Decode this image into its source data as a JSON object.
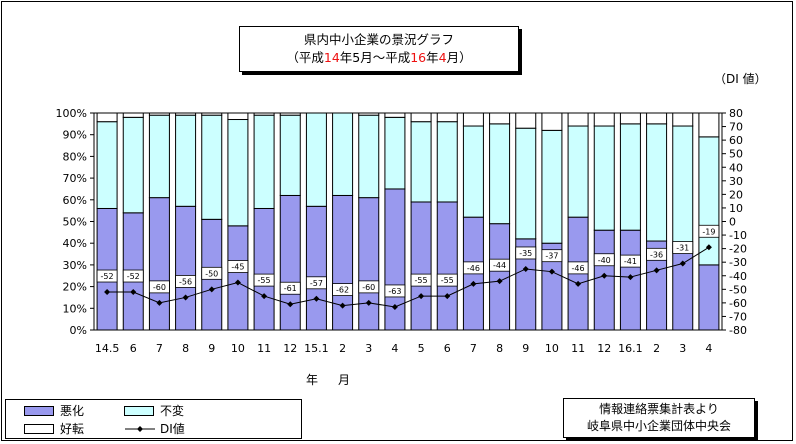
{
  "title": {
    "line1": "県内中小企業の景況グラフ",
    "line2_prefix": "（平成",
    "line2_y1": "14",
    "line2_mid1": "年5月～平成",
    "line2_y2": "16",
    "line2_mid2": "年",
    "line2_m2": "4",
    "line2_suffix": "月）"
  },
  "di_unit": "（DI 値）",
  "xaxis_label": "年　月",
  "legend": {
    "bad": "悪化",
    "same": "不変",
    "good": "好転",
    "di": "DI値"
  },
  "source": {
    "line1": "情報連絡票集計表より",
    "line2": "岐阜県中小企業団体中央会"
  },
  "colors": {
    "bad": "#9999ee",
    "same": "#ccffff",
    "good": "#ffffff",
    "di_line": "#000000"
  },
  "chart_data": {
    "type": "bar",
    "stacked": true,
    "categories": [
      "14.5",
      "6",
      "7",
      "8",
      "9",
      "10",
      "11",
      "12",
      "15.1",
      "2",
      "3",
      "4",
      "5",
      "6",
      "7",
      "8",
      "9",
      "10",
      "11",
      "12",
      "16.1",
      "2",
      "3",
      "4"
    ],
    "series": [
      {
        "name": "悪化",
        "values": [
          56,
          54,
          61,
          57,
          51,
          48,
          56,
          62,
          57,
          62,
          61,
          65,
          59,
          59,
          52,
          49,
          42,
          40,
          52,
          46,
          46,
          41,
          36,
          30
        ]
      },
      {
        "name": "不変",
        "values": [
          40,
          44,
          38,
          42,
          48,
          49,
          43,
          37,
          43,
          38,
          38,
          33,
          37,
          37,
          42,
          46,
          51,
          52,
          42,
          48,
          49,
          54,
          58,
          59
        ]
      },
      {
        "name": "好転",
        "values": [
          4,
          2,
          1,
          1,
          1,
          3,
          1,
          1,
          0,
          0,
          1,
          2,
          4,
          4,
          6,
          5,
          7,
          8,
          6,
          6,
          5,
          5,
          6,
          11
        ]
      },
      {
        "name": "DI値",
        "axis": "right",
        "values": [
          -52,
          -52,
          -60,
          -56,
          -50,
          -45,
          -55,
          -61,
          -57,
          -62,
          -60,
          -63,
          -55,
          -55,
          -46,
          -44,
          -35,
          -37,
          -46,
          -40,
          -41,
          -36,
          -31,
          -19
        ]
      }
    ],
    "di_labels": [
      "-52",
      "-52",
      "-60",
      "-56",
      "-50",
      "-45",
      "-55",
      "-61",
      "-57",
      "-62",
      "-60",
      "-63",
      "-55",
      "-55",
      "-46",
      "-44",
      "-35",
      "-37",
      "-46",
      "-40",
      "-41",
      "-36",
      "-31",
      "-19"
    ],
    "ylim_left": [
      0,
      100
    ],
    "yticks_left": [
      "0%",
      "10%",
      "20%",
      "30%",
      "40%",
      "50%",
      "60%",
      "70%",
      "80%",
      "90%",
      "100%"
    ],
    "ylim_right": [
      -80,
      80
    ],
    "yticks_right": [
      "-80",
      "-70",
      "-60",
      "-50",
      "-40",
      "-30",
      "-20",
      "-10",
      "0",
      "10",
      "20",
      "30",
      "40",
      "50",
      "60",
      "70",
      "80"
    ],
    "xlabel": "年　月",
    "legend_position": "bottom-left"
  }
}
